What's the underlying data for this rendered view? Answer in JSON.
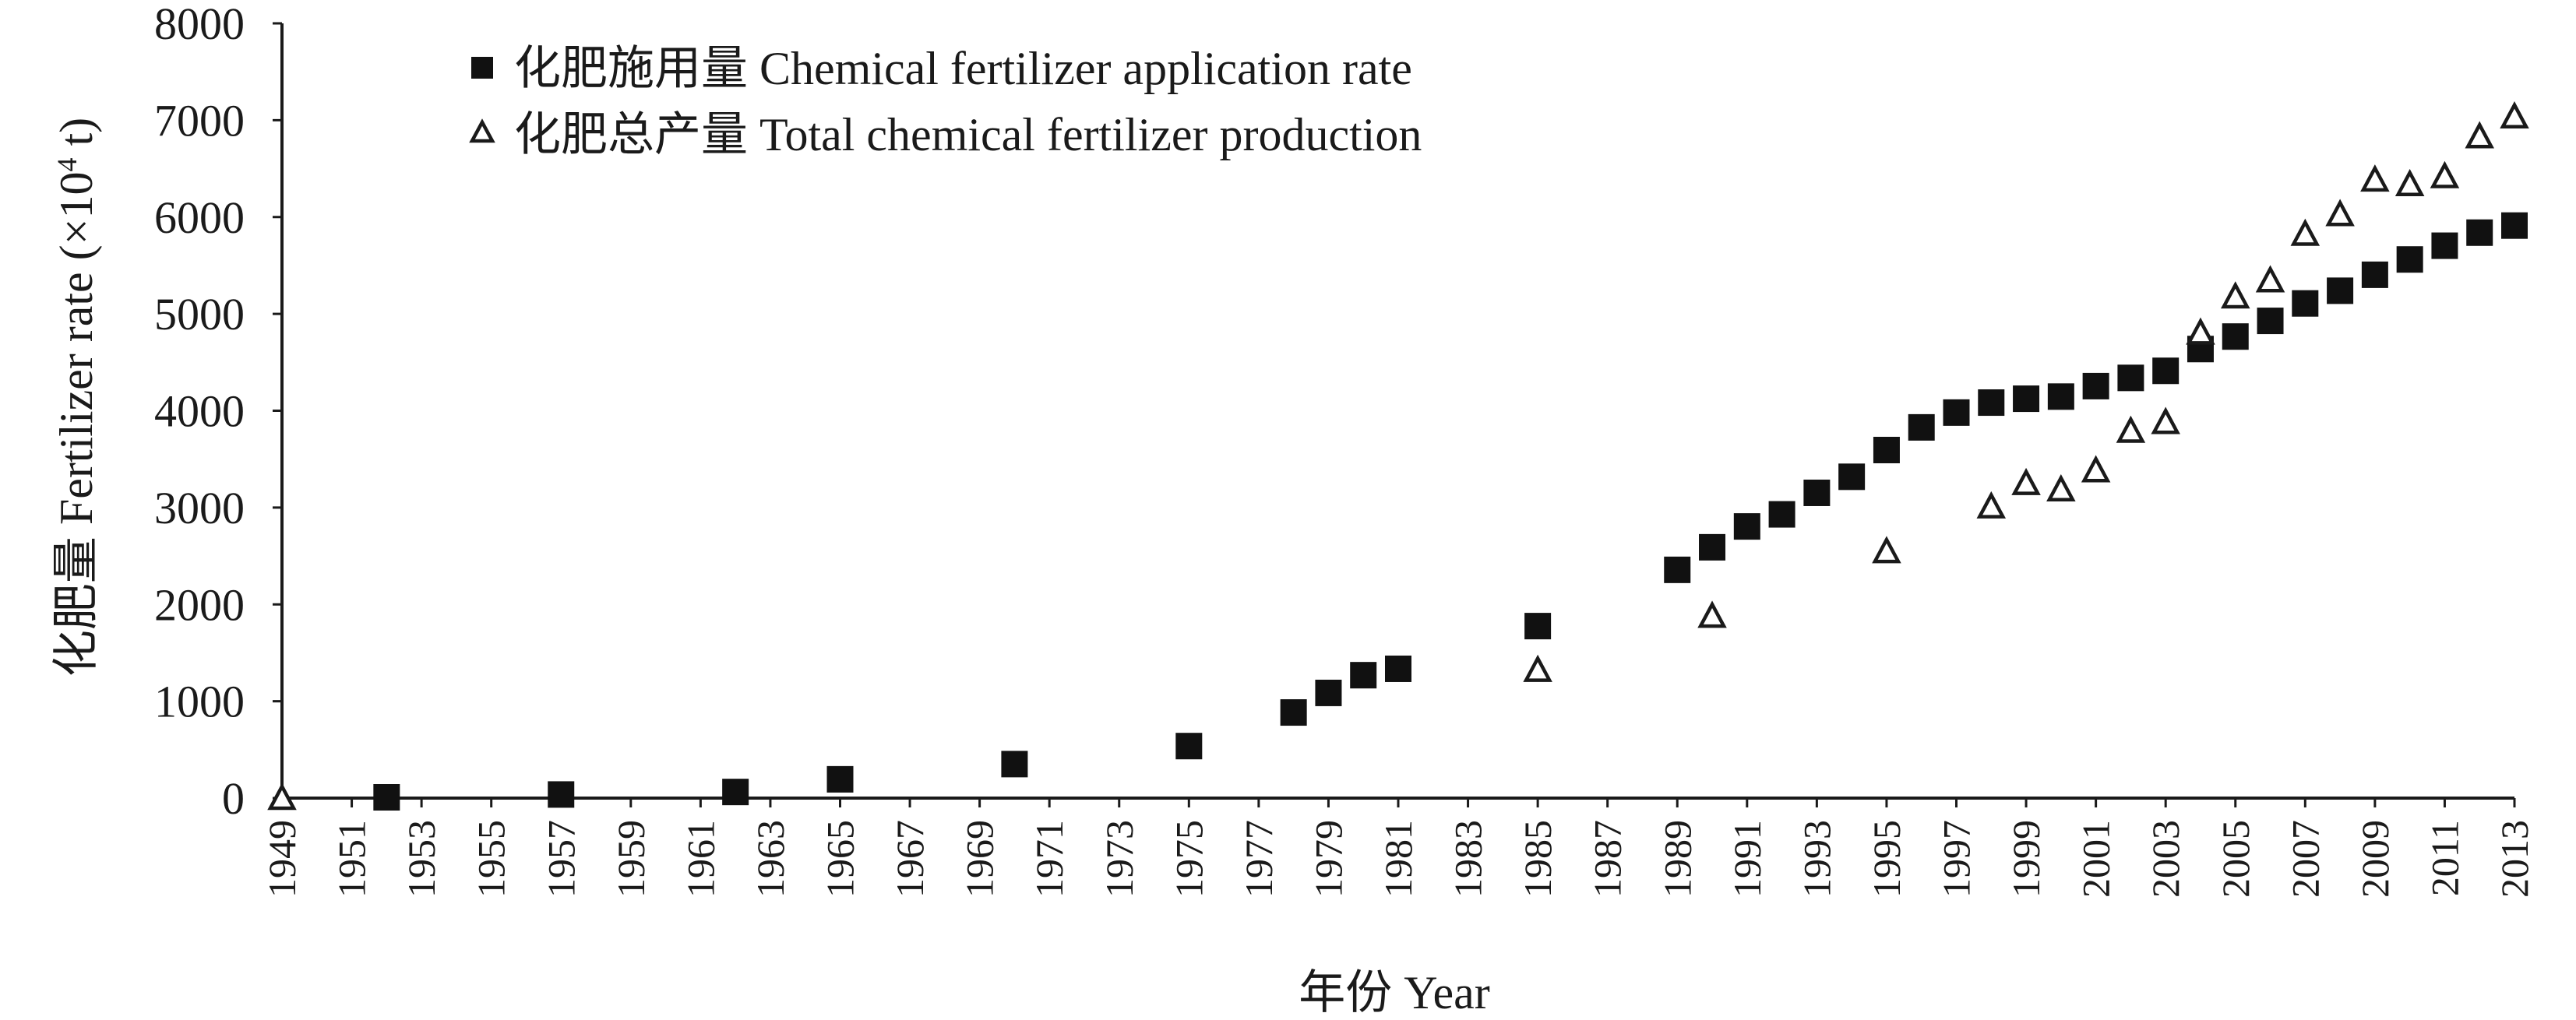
{
  "chart_data": {
    "type": "scatter",
    "title": "",
    "xlabel": "年份 Year",
    "ylabel": "化肥量 Fertilizer rate (×10",
    "ylabel_exponent": "4",
    "ylabel_unit": " t)",
    "xlim": [
      1949,
      2013
    ],
    "ylim": [
      0,
      8000
    ],
    "x_ticks": [
      1949,
      1951,
      1953,
      1955,
      1957,
      1959,
      1961,
      1963,
      1965,
      1967,
      1969,
      1971,
      1973,
      1975,
      1977,
      1979,
      1981,
      1983,
      1985,
      1987,
      1989,
      1991,
      1993,
      1995,
      1997,
      1999,
      2001,
      2003,
      2005,
      2007,
      2009,
      2011,
      2013
    ],
    "y_ticks": [
      0,
      1000,
      2000,
      3000,
      4000,
      5000,
      6000,
      7000,
      8000
    ],
    "grid": false,
    "legend_position": "top-left",
    "series": [
      {
        "name": "化肥施用量 Chemical fertilizer application rate",
        "marker": "filled-square",
        "color": "#111111",
        "points": [
          [
            1952,
            8
          ],
          [
            1957,
            37
          ],
          [
            1962,
            63
          ],
          [
            1965,
            194
          ],
          [
            1970,
            351
          ],
          [
            1975,
            537
          ],
          [
            1978,
            884
          ],
          [
            1979,
            1086
          ],
          [
            1980,
            1269
          ],
          [
            1981,
            1335
          ],
          [
            1985,
            1776
          ],
          [
            1989,
            2357
          ],
          [
            1990,
            2590
          ],
          [
            1991,
            2805
          ],
          [
            1992,
            2930
          ],
          [
            1993,
            3152
          ],
          [
            1994,
            3318
          ],
          [
            1995,
            3594
          ],
          [
            1996,
            3828
          ],
          [
            1997,
            3981
          ],
          [
            1998,
            4084
          ],
          [
            1999,
            4124
          ],
          [
            2000,
            4146
          ],
          [
            2001,
            4254
          ],
          [
            2002,
            4339
          ],
          [
            2003,
            4412
          ],
          [
            2004,
            4637
          ],
          [
            2005,
            4766
          ],
          [
            2006,
            4928
          ],
          [
            2007,
            5108
          ],
          [
            2008,
            5239
          ],
          [
            2009,
            5404
          ],
          [
            2010,
            5562
          ],
          [
            2011,
            5704
          ],
          [
            2012,
            5839
          ],
          [
            2013,
            5912
          ]
        ]
      },
      {
        "name": "化肥总产量 Total chemical fertilizer production",
        "marker": "open-triangle",
        "color": "#1a1a1a",
        "points": [
          [
            1949,
            0
          ],
          [
            1985,
            1322
          ],
          [
            1990,
            1880
          ],
          [
            1995,
            2548
          ],
          [
            1998,
            3010
          ],
          [
            1999,
            3251
          ],
          [
            2000,
            3186
          ],
          [
            2001,
            3383
          ],
          [
            2002,
            3791
          ],
          [
            2003,
            3881
          ],
          [
            2004,
            4805
          ],
          [
            2005,
            5178
          ],
          [
            2006,
            5345
          ],
          [
            2007,
            5825
          ],
          [
            2008,
            6028
          ],
          [
            2009,
            6385
          ],
          [
            2010,
            6338
          ],
          [
            2011,
            6420
          ],
          [
            2012,
            6832
          ],
          [
            2013,
            7037
          ]
        ]
      }
    ]
  }
}
